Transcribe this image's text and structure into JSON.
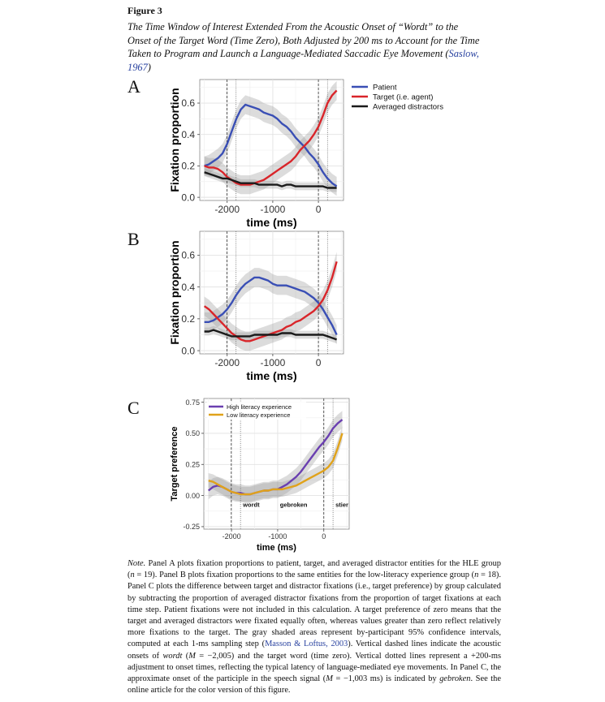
{
  "figure": {
    "label": "Figure 3",
    "title_main": "The Time Window of Interest Extended From the Acoustic Onset of “Wordt” to the Onset of the Target Word (Time Zero), Both Adjusted by 200 ms to Account for the Time Taken to Program and Launch a Language-Mediated Saccadic Eye Movement (",
    "title_cite": "Saslow, 1967",
    "title_end": ")"
  },
  "chart_data": [
    {
      "panel": "A",
      "type": "line",
      "xlabel": "time (ms)",
      "ylabel": "Fixation proportion",
      "xlim": [
        -2600,
        550
      ],
      "ylim": [
        -0.02,
        0.75
      ],
      "xticks": [
        -2000,
        -1000,
        0
      ],
      "xtick_labels": [
        "-2000",
        "-1000",
        "0"
      ],
      "yticks": [
        0.0,
        0.2,
        0.4,
        0.6
      ],
      "ytick_labels": [
        "0.0",
        "0.2",
        "0.4",
        "0.6"
      ],
      "grid": true,
      "legend": "outside-right",
      "vlines_dashed": [
        -2005,
        0
      ],
      "vlines_dotted": [
        -1805,
        200
      ],
      "series": [
        {
          "name": "Patient",
          "color": "#3a4fb5",
          "x": [
            -2500,
            -2400,
            -2300,
            -2200,
            -2100,
            -2000,
            -1900,
            -1800,
            -1700,
            -1600,
            -1500,
            -1400,
            -1300,
            -1200,
            -1100,
            -1000,
            -900,
            -800,
            -700,
            -600,
            -500,
            -400,
            -300,
            -200,
            -100,
            0,
            100,
            200,
            300,
            400
          ],
          "values": [
            0.2,
            0.21,
            0.23,
            0.25,
            0.28,
            0.34,
            0.42,
            0.5,
            0.56,
            0.59,
            0.58,
            0.57,
            0.56,
            0.54,
            0.53,
            0.52,
            0.5,
            0.47,
            0.45,
            0.42,
            0.38,
            0.35,
            0.32,
            0.28,
            0.25,
            0.21,
            0.16,
            0.12,
            0.09,
            0.07
          ],
          "ci": 0.06
        },
        {
          "name": "Target (i.e. agent)",
          "color": "#d9252a",
          "x": [
            -2500,
            -2400,
            -2300,
            -2200,
            -2100,
            -2000,
            -1900,
            -1800,
            -1700,
            -1600,
            -1500,
            -1400,
            -1300,
            -1200,
            -1100,
            -1000,
            -900,
            -800,
            -700,
            -600,
            -500,
            -400,
            -300,
            -200,
            -100,
            0,
            100,
            200,
            300,
            400
          ],
          "values": [
            0.2,
            0.19,
            0.19,
            0.18,
            0.16,
            0.13,
            0.11,
            0.09,
            0.08,
            0.08,
            0.08,
            0.09,
            0.1,
            0.11,
            0.13,
            0.15,
            0.17,
            0.19,
            0.21,
            0.23,
            0.26,
            0.3,
            0.33,
            0.36,
            0.4,
            0.45,
            0.52,
            0.6,
            0.65,
            0.68
          ],
          "ci": 0.06
        },
        {
          "name": "Averaged distractors",
          "color": "#1a1a1a",
          "x": [
            -2500,
            -2400,
            -2300,
            -2200,
            -2100,
            -2000,
            -1900,
            -1800,
            -1700,
            -1600,
            -1500,
            -1400,
            -1300,
            -1200,
            -1100,
            -1000,
            -900,
            -800,
            -700,
            -600,
            -500,
            -400,
            -300,
            -200,
            -100,
            0,
            100,
            200,
            300,
            400
          ],
          "values": [
            0.16,
            0.15,
            0.14,
            0.13,
            0.12,
            0.12,
            0.11,
            0.1,
            0.09,
            0.09,
            0.09,
            0.09,
            0.08,
            0.08,
            0.08,
            0.08,
            0.08,
            0.07,
            0.08,
            0.08,
            0.07,
            0.07,
            0.07,
            0.07,
            0.07,
            0.07,
            0.07,
            0.06,
            0.06,
            0.06
          ],
          "ci": 0.025
        }
      ]
    },
    {
      "panel": "B",
      "type": "line",
      "xlabel": "time (ms)",
      "ylabel": "Fixation proportion",
      "xlim": [
        -2600,
        550
      ],
      "ylim": [
        -0.02,
        0.75
      ],
      "xticks": [
        -2000,
        -1000,
        0
      ],
      "xtick_labels": [
        "-2000",
        "-1000",
        "0"
      ],
      "yticks": [
        0.0,
        0.2,
        0.4,
        0.6
      ],
      "ytick_labels": [
        "0.0",
        "0.2",
        "0.4",
        "0.6"
      ],
      "grid": true,
      "vlines_dashed": [
        -2005,
        0
      ],
      "vlines_dotted": [
        -1805,
        200
      ],
      "series": [
        {
          "name": "Patient",
          "color": "#3a4fb5",
          "x": [
            -2500,
            -2400,
            -2300,
            -2200,
            -2100,
            -2000,
            -1900,
            -1800,
            -1700,
            -1600,
            -1500,
            -1400,
            -1300,
            -1200,
            -1100,
            -1000,
            -900,
            -800,
            -700,
            -600,
            -500,
            -400,
            -300,
            -200,
            -100,
            0,
            100,
            200,
            300,
            400
          ],
          "values": [
            0.18,
            0.18,
            0.19,
            0.21,
            0.23,
            0.26,
            0.3,
            0.35,
            0.39,
            0.42,
            0.44,
            0.46,
            0.46,
            0.45,
            0.44,
            0.42,
            0.41,
            0.41,
            0.41,
            0.4,
            0.39,
            0.38,
            0.37,
            0.35,
            0.33,
            0.3,
            0.26,
            0.21,
            0.16,
            0.1
          ],
          "ci": 0.06
        },
        {
          "name": "Target (i.e. agent)",
          "color": "#d9252a",
          "x": [
            -2500,
            -2400,
            -2300,
            -2200,
            -2100,
            -2000,
            -1900,
            -1800,
            -1700,
            -1600,
            -1500,
            -1400,
            -1300,
            -1200,
            -1100,
            -1000,
            -900,
            -800,
            -700,
            -600,
            -500,
            -400,
            -300,
            -200,
            -100,
            0,
            100,
            200,
            300,
            400
          ],
          "values": [
            0.28,
            0.26,
            0.23,
            0.2,
            0.17,
            0.14,
            0.11,
            0.09,
            0.07,
            0.06,
            0.06,
            0.07,
            0.08,
            0.09,
            0.1,
            0.11,
            0.12,
            0.13,
            0.15,
            0.16,
            0.18,
            0.19,
            0.21,
            0.23,
            0.25,
            0.28,
            0.32,
            0.38,
            0.46,
            0.56
          ],
          "ci": 0.06
        },
        {
          "name": "Averaged distractors",
          "color": "#1a1a1a",
          "x": [
            -2500,
            -2400,
            -2300,
            -2200,
            -2100,
            -2000,
            -1900,
            -1800,
            -1700,
            -1600,
            -1500,
            -1400,
            -1300,
            -1200,
            -1100,
            -1000,
            -900,
            -800,
            -700,
            -600,
            -500,
            -400,
            -300,
            -200,
            -100,
            0,
            100,
            200,
            300,
            400
          ],
          "values": [
            0.12,
            0.12,
            0.13,
            0.12,
            0.11,
            0.1,
            0.09,
            0.09,
            0.09,
            0.09,
            0.09,
            0.1,
            0.1,
            0.1,
            0.1,
            0.1,
            0.1,
            0.11,
            0.11,
            0.11,
            0.1,
            0.1,
            0.1,
            0.1,
            0.1,
            0.1,
            0.1,
            0.09,
            0.08,
            0.07
          ],
          "ci": 0.025
        }
      ]
    },
    {
      "panel": "C",
      "type": "line",
      "xlabel": "time (ms)",
      "ylabel": "Target preference",
      "xlim": [
        -2600,
        550
      ],
      "ylim": [
        -0.27,
        0.78
      ],
      "xticks": [
        -2000,
        -1000,
        0
      ],
      "xtick_labels": [
        "-2000",
        "-1000",
        "0"
      ],
      "yticks": [
        -0.25,
        0.0,
        0.25,
        0.5,
        0.75
      ],
      "ytick_labels": [
        "-0.25",
        "0.00",
        "0.25",
        "0.50",
        "0.75"
      ],
      "grid": true,
      "legend": "top-left",
      "vlines_dashed": [
        -2005,
        0
      ],
      "vlines_dotted": [
        -1805,
        200
      ],
      "annotations": [
        {
          "text": "wordt",
          "x": -1805,
          "y": -0.09
        },
        {
          "text": "gebroken",
          "x": -1003,
          "y": -0.09
        },
        {
          "text": "stier",
          "x": 200,
          "y": -0.09
        }
      ],
      "series": [
        {
          "name": "High literacy experience",
          "color": "#6a3fb0",
          "x": [
            -2500,
            -2400,
            -2300,
            -2200,
            -2100,
            -2000,
            -1900,
            -1800,
            -1700,
            -1600,
            -1500,
            -1400,
            -1300,
            -1200,
            -1100,
            -1000,
            -900,
            -800,
            -700,
            -600,
            -500,
            -400,
            -300,
            -200,
            -100,
            0,
            100,
            200,
            300,
            400
          ],
          "values": [
            0.04,
            0.07,
            0.08,
            0.07,
            0.05,
            0.03,
            0.02,
            0.02,
            0.01,
            0.01,
            0.02,
            0.03,
            0.04,
            0.04,
            0.05,
            0.05,
            0.07,
            0.09,
            0.12,
            0.15,
            0.19,
            0.24,
            0.29,
            0.34,
            0.39,
            0.43,
            0.48,
            0.54,
            0.58,
            0.61
          ],
          "ci": 0.07
        },
        {
          "name": "Low literacy experience",
          "color": "#e0a21a",
          "x": [
            -2500,
            -2400,
            -2300,
            -2200,
            -2100,
            -2000,
            -1900,
            -1800,
            -1700,
            -1600,
            -1500,
            -1400,
            -1300,
            -1200,
            -1100,
            -1000,
            -900,
            -800,
            -700,
            -600,
            -500,
            -400,
            -300,
            -200,
            -100,
            0,
            100,
            200,
            300,
            400
          ],
          "values": [
            0.12,
            0.11,
            0.09,
            0.07,
            0.05,
            0.03,
            0.02,
            0.01,
            0.01,
            0.01,
            0.02,
            0.03,
            0.04,
            0.04,
            0.05,
            0.05,
            0.05,
            0.06,
            0.07,
            0.08,
            0.1,
            0.12,
            0.14,
            0.16,
            0.18,
            0.2,
            0.23,
            0.28,
            0.38,
            0.5
          ],
          "ci": 0.06
        }
      ]
    }
  ],
  "note": {
    "p1": "Note.",
    "p2": " Panel A plots fixation proportions to patient, target, and averaged distractor entities for the HLE group (",
    "p3": "n",
    "p4": " = 19). Panel B plots fixation proportions to the same entities for the low-literacy experience group (",
    "p5": "n",
    "p6": " = 18). Panel C plots the difference between target and distractor fixations (i.e., target preference) by group calculated by subtracting the proportion of averaged distractor fixations from the proportion of target fixations at each time step. Patient fixations were not included in this calculation. A target preference of zero means that the target and averaged distractors were fixated equally often, whereas values greater than zero reflect relatively more fixations to the target. The gray shaded areas represent by-participant 95% confidence intervals, computed at each 1-ms sampling step (",
    "p7": "Masson & Loftus, 2003",
    "p8": "). Vertical dashed lines indicate the acoustic onsets of ",
    "p9": "wordt",
    "p10": " (",
    "p11": "M",
    "p12": " = −2,005) and the target word (time zero). Vertical dotted lines represent a +200-ms adjustment to onset times, reflecting the typical latency of language-mediated eye movements. In Panel C, the approximate onset of the participle in the speech signal (",
    "p13": "M",
    "p14": " = −1,003 ms) is indicated by ",
    "p15": "gebroken",
    "p16": ". See the online article for the color version of this figure."
  }
}
